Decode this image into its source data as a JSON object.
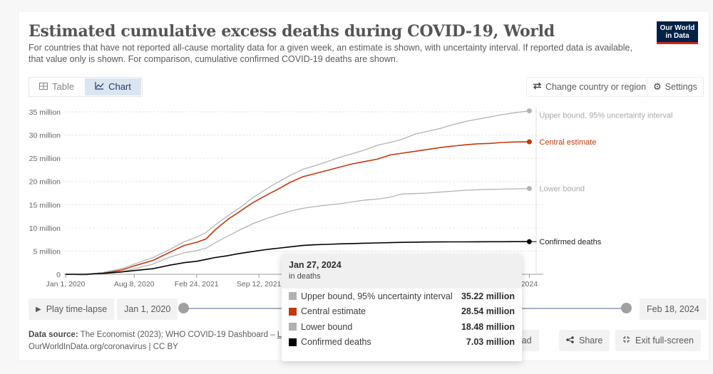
{
  "header": {
    "title": "Estimated cumulative excess deaths during COVID-19, World",
    "subtitle": "For countries that have not reported all-cause mortality data for a given week, an estimate is shown, with uncertainty interval. If reported data is available, that value only is shown. For comparison, cumulative confirmed COVID-19 deaths are shown.",
    "logo_line1": "Our World",
    "logo_line2": "in Data"
  },
  "tabs": [
    {
      "label": "Table",
      "icon": "table-icon",
      "active": false
    },
    {
      "label": "Chart",
      "icon": "line-chart-icon",
      "active": true
    }
  ],
  "toolbar": {
    "change_country_label": "Change country or region",
    "settings_label": "Settings"
  },
  "timeline": {
    "play_label": "Play time-lapse",
    "start_date": "Jan 1, 2020",
    "end_date": "Feb 18, 2024"
  },
  "footer": {
    "source_label": "Data source:",
    "source_text": "The Economist (2023); WHO COVID-19 Dashboard – ",
    "source_link": "L",
    "url_text": "OurWorldInData.org/coronavirus | CC BY",
    "download_label": "Download",
    "share_label": "Share",
    "exit_fullscreen_label": "Exit full-screen"
  },
  "tooltip": {
    "date": "Jan 27, 2024",
    "unit": "in deaths",
    "rows": [
      {
        "label": "Upper bound, 95% uncertainty interval",
        "value": "35.22 million",
        "color": "#b0b0b0"
      },
      {
        "label": "Central estimate",
        "value": "28.54 million",
        "color": "#c0390f"
      },
      {
        "label": "Lower bound",
        "value": "18.48 million",
        "color": "#b0b0b0"
      },
      {
        "label": "Confirmed deaths",
        "value": "7.03 million",
        "color": "#000000"
      }
    ]
  },
  "chart_data": {
    "type": "line",
    "title": "Estimated cumulative excess deaths during COVID-19, World",
    "xlabel": "",
    "ylabel": "",
    "x_domain_days": [
      0,
      1509
    ],
    "ylim": [
      0,
      35000000
    ],
    "y_ticks": [
      {
        "value": 0,
        "label": "0"
      },
      {
        "value": 5000000,
        "label": "5 million"
      },
      {
        "value": 10000000,
        "label": "10 million"
      },
      {
        "value": 15000000,
        "label": "15 million"
      },
      {
        "value": 20000000,
        "label": "20 million"
      },
      {
        "value": 25000000,
        "label": "25 million"
      },
      {
        "value": 30000000,
        "label": "30 million"
      },
      {
        "value": 35000000,
        "label": "35 million"
      }
    ],
    "x_ticks": [
      {
        "day": 0,
        "label": "Jan 1, 2020"
      },
      {
        "day": 220,
        "label": "Aug 8, 2020"
      },
      {
        "day": 420,
        "label": "Feb 24, 2021"
      },
      {
        "day": 620,
        "label": "Sep 12, 2021"
      },
      {
        "day": 1487,
        "label": "2024"
      }
    ],
    "grid": true,
    "legend": "right (end-of-line labels)",
    "x_days": [
      0,
      60,
      120,
      180,
      220,
      280,
      330,
      380,
      420,
      450,
      480,
      520,
      560,
      600,
      640,
      680,
      720,
      760,
      800,
      840,
      880,
      920,
      960,
      1000,
      1040,
      1080,
      1120,
      1160,
      1200,
      1240,
      1280,
      1320,
      1360,
      1400,
      1440,
      1487
    ],
    "series": [
      {
        "name": "Upper bound, 95% uncertainty interval",
        "color": "#b3b3b3",
        "values": [
          0,
          -0.1,
          0.4,
          1.2,
          2.2,
          3.6,
          5.2,
          7.0,
          8.0,
          9.0,
          10.6,
          12.6,
          14.4,
          16.5,
          18.2,
          19.8,
          21.3,
          22.6,
          23.4,
          24.3,
          25.2,
          26.0,
          26.8,
          27.8,
          28.4,
          29.1,
          30.2,
          30.8,
          31.4,
          32.2,
          32.9,
          33.4,
          33.9,
          34.4,
          34.8,
          35.22
        ]
      },
      {
        "name": "Central estimate",
        "color": "#c0390f",
        "values": [
          0,
          -0.1,
          0.2,
          0.9,
          1.8,
          3.0,
          4.6,
          6.2,
          6.9,
          7.6,
          9.6,
          11.8,
          13.6,
          15.4,
          16.9,
          18.3,
          19.8,
          21.0,
          21.7,
          22.4,
          23.1,
          23.8,
          24.3,
          24.8,
          25.7,
          26.1,
          26.5,
          26.9,
          27.3,
          27.6,
          27.9,
          28.1,
          28.2,
          28.4,
          28.5,
          28.54
        ]
      },
      {
        "name": "Lower bound",
        "color": "#b3b3b3",
        "values": [
          0,
          -0.1,
          0.1,
          0.5,
          1.2,
          2.2,
          3.6,
          4.6,
          5.1,
          5.6,
          6.8,
          8.2,
          9.6,
          10.9,
          11.9,
          12.8,
          13.6,
          14.2,
          14.6,
          14.9,
          15.2,
          15.6,
          16.0,
          16.2,
          16.6,
          17.3,
          17.4,
          17.5,
          17.7,
          17.9,
          18.1,
          18.2,
          18.3,
          18.35,
          18.4,
          18.48
        ]
      },
      {
        "name": "Confirmed deaths",
        "color": "#000000",
        "values": [
          0,
          0,
          0.2,
          0.5,
          0.8,
          1.2,
          1.9,
          2.5,
          2.8,
          3.2,
          3.6,
          4.0,
          4.5,
          4.9,
          5.3,
          5.6,
          5.9,
          6.2,
          6.35,
          6.45,
          6.55,
          6.62,
          6.7,
          6.76,
          6.82,
          6.87,
          6.92,
          6.95,
          6.97,
          6.98,
          6.99,
          7.0,
          7.01,
          7.02,
          7.03,
          7.03
        ]
      }
    ]
  }
}
